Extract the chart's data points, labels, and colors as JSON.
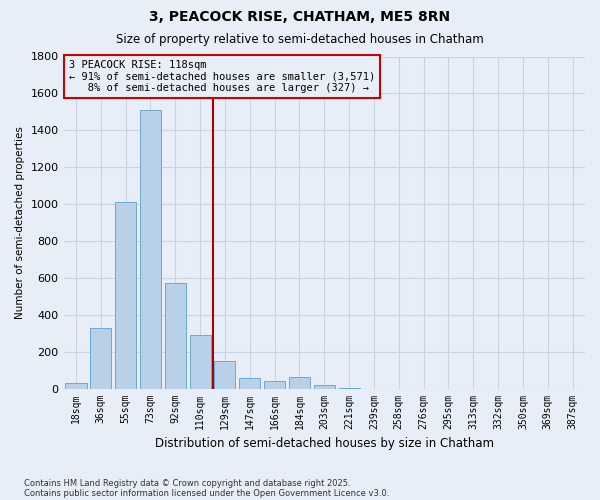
{
  "title1": "3, PEACOCK RISE, CHATHAM, ME5 8RN",
  "title2": "Size of property relative to semi-detached houses in Chatham",
  "xlabel": "Distribution of semi-detached houses by size in Chatham",
  "ylabel": "Number of semi-detached properties",
  "categories": [
    "18sqm",
    "36sqm",
    "55sqm",
    "73sqm",
    "92sqm",
    "110sqm",
    "129sqm",
    "147sqm",
    "166sqm",
    "184sqm",
    "203sqm",
    "221sqm",
    "239sqm",
    "258sqm",
    "276sqm",
    "295sqm",
    "313sqm",
    "332sqm",
    "350sqm",
    "369sqm",
    "387sqm"
  ],
  "values": [
    30,
    330,
    1010,
    1510,
    570,
    290,
    150,
    55,
    40,
    60,
    20,
    5,
    0,
    0,
    0,
    0,
    0,
    0,
    0,
    0,
    0
  ],
  "bar_color": "#b8d0e8",
  "bar_edge_color": "#6aaad4",
  "grid_color": "#c8d4e4",
  "bg_color": "#e8eef8",
  "vline_x_index": 5.5,
  "vline_color": "#aa0000",
  "annotation_line1": "3 PEACOCK RISE: 118sqm",
  "annotation_line2": "← 91% of semi-detached houses are smaller (3,571)",
  "annotation_line3": "   8% of semi-detached houses are larger (327) →",
  "annotation_box_color": "#cc0000",
  "ylim": [
    0,
    1800
  ],
  "yticks": [
    0,
    200,
    400,
    600,
    800,
    1000,
    1200,
    1400,
    1600,
    1800
  ],
  "footer1": "Contains HM Land Registry data © Crown copyright and database right 2025.",
  "footer2": "Contains public sector information licensed under the Open Government Licence v3.0."
}
